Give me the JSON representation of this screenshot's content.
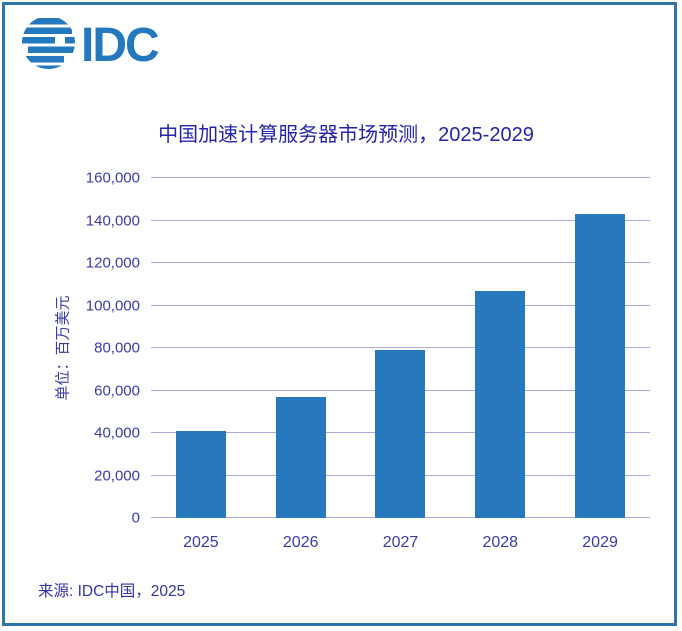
{
  "logo": {
    "text": "IDC",
    "color": "#2478BE",
    "icon": "globe-stripes-icon"
  },
  "chart_data": {
    "type": "bar",
    "title": "中国加速计算服务器市场预测，2025-2029",
    "xlabel": "",
    "ylabel": "单位：百万美元",
    "categories": [
      "2025",
      "2026",
      "2027",
      "2028",
      "2029"
    ],
    "values": [
      41000,
      57000,
      79000,
      107000,
      143000
    ],
    "ylim": [
      0,
      160000
    ],
    "ytick_step": 20000,
    "ytick_labels": [
      "0",
      "20,000",
      "40,000",
      "60,000",
      "80,000",
      "100,000",
      "120,000",
      "140,000",
      "160,000"
    ],
    "bar_color": "#2878BE",
    "gridline_color": "#ABABDE",
    "grid": true,
    "legend_position": "none"
  },
  "source": {
    "label": "来源: IDC中国，2025"
  },
  "frame": {
    "border_color": "#2E74A8"
  }
}
